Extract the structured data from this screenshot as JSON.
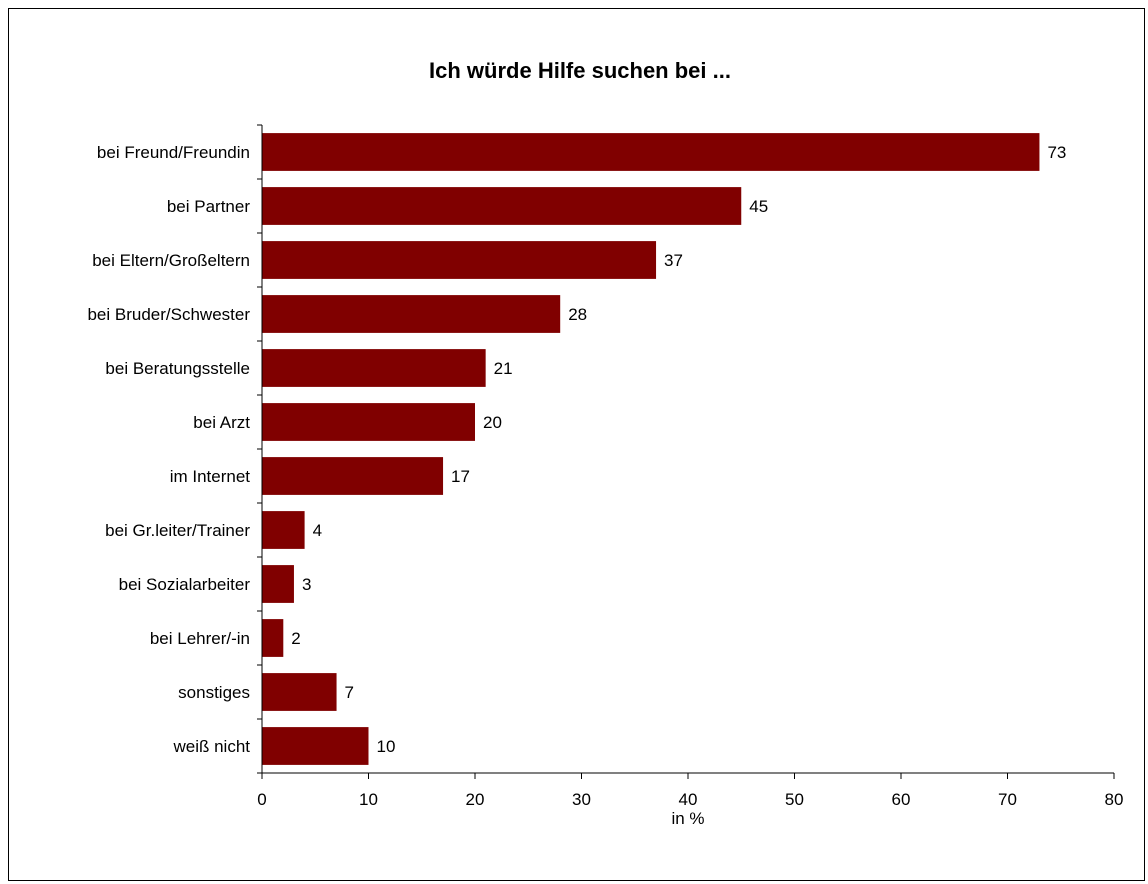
{
  "chart_data": {
    "type": "bar",
    "orientation": "horizontal",
    "title": "Ich würde Hilfe suchen bei ...",
    "xlabel": "in %",
    "ylabel": "",
    "categories": [
      "bei Freund/Freundin",
      "bei Partner",
      "bei Eltern/Großeltern",
      "bei Bruder/Schwester",
      "bei Beratungsstelle",
      "bei Arzt",
      "im Internet",
      "bei Gr.leiter/Trainer",
      "bei Sozialarbeiter",
      "bei Lehrer/-in",
      "sonstiges",
      "weiß nicht"
    ],
    "values": [
      73,
      45,
      37,
      28,
      21,
      20,
      17,
      4,
      3,
      2,
      7,
      10
    ],
    "data_labels": [
      "73",
      "45",
      "37",
      "28",
      "21",
      "20",
      "17",
      "4",
      "3",
      "2",
      "7",
      "10"
    ],
    "xlim": [
      0,
      80
    ],
    "xticks": [
      0,
      10,
      20,
      30,
      40,
      50,
      60,
      70,
      80
    ],
    "bar_color": "#800000",
    "grid": false,
    "legend": "none"
  }
}
